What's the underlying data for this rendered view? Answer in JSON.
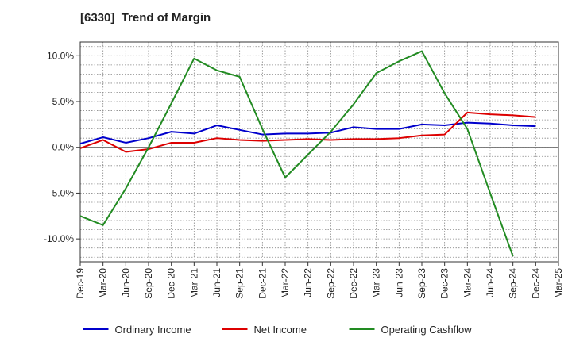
{
  "chart_data": {
    "type": "line",
    "title": "[6330]  Trend of Margin",
    "xlabel": "",
    "ylabel": "",
    "ylim": [
      -12.5,
      11.5
    ],
    "yticks": [
      10.0,
      5.0,
      0.0,
      -5.0,
      -10.0
    ],
    "ytick_labels": [
      "10.0%",
      "5.0%",
      "0.0%",
      "-5.0%",
      "-10.0%"
    ],
    "categories": [
      "Dec-19",
      "Mar-20",
      "Jun-20",
      "Sep-20",
      "Dec-20",
      "Mar-21",
      "Jun-21",
      "Sep-21",
      "Dec-21",
      "Mar-22",
      "Jun-22",
      "Sep-22",
      "Dec-22",
      "Mar-23",
      "Jun-23",
      "Sep-23",
      "Dec-23",
      "Mar-24",
      "Jun-24",
      "Sep-24",
      "Dec-24",
      "Mar-25"
    ],
    "grid": true,
    "legend_position": "bottom",
    "series": [
      {
        "name": "Ordinary Income",
        "color": "#0000cc",
        "values": [
          0.4,
          1.1,
          0.5,
          1.0,
          1.7,
          1.5,
          2.4,
          1.9,
          1.4,
          1.5,
          1.5,
          1.6,
          2.2,
          2.0,
          2.0,
          2.5,
          2.4,
          2.7,
          2.6,
          2.4,
          2.3,
          null
        ]
      },
      {
        "name": "Net Income",
        "color": "#dd0000",
        "values": [
          -0.1,
          0.8,
          -0.5,
          -0.2,
          0.5,
          0.5,
          1.0,
          0.8,
          0.7,
          0.8,
          0.9,
          0.8,
          0.9,
          0.9,
          1.0,
          1.3,
          1.4,
          3.8,
          3.6,
          3.5,
          3.3,
          null
        ]
      },
      {
        "name": "Operating Cashflow",
        "color": "#228b22",
        "values": [
          -7.5,
          -8.5,
          -4.5,
          0.0,
          4.8,
          9.7,
          8.4,
          7.7,
          2.0,
          -3.3,
          -0.8,
          1.7,
          4.7,
          8.1,
          9.4,
          10.5,
          5.9,
          2.0,
          -5.0,
          -11.9,
          null,
          null
        ]
      }
    ]
  }
}
